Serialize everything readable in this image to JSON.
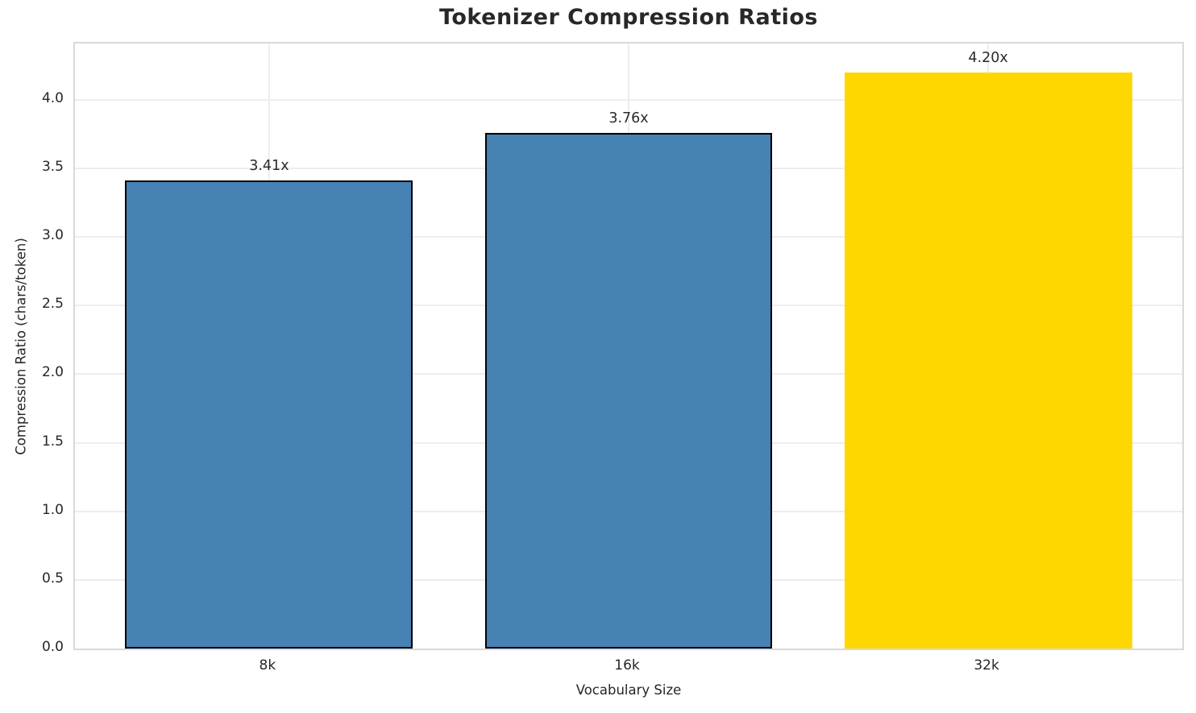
{
  "title": "Tokenizer Compression Ratios",
  "chart_data": {
    "type": "bar",
    "title": "Tokenizer Compression Ratios",
    "xlabel": "Vocabulary Size",
    "ylabel": "Compression Ratio (chars/token)",
    "categories": [
      "8k",
      "16k",
      "32k"
    ],
    "values": [
      3.41,
      3.76,
      4.2
    ],
    "bars": [
      {
        "category": "8k",
        "value": 3.41,
        "label": "3.41x",
        "color": "#4682B4",
        "edge": "#000000"
      },
      {
        "category": "16k",
        "value": 3.76,
        "label": "3.76x",
        "color": "#4682B4",
        "edge": "#000000"
      },
      {
        "category": "32k",
        "value": 4.2,
        "label": "4.20x",
        "color": "#FFD700",
        "edge": null
      }
    ],
    "ylim": [
      0,
      4.41
    ],
    "xlim": [
      -0.54,
      2.54
    ],
    "bar_width": 0.8,
    "yticks": [
      0.0,
      0.5,
      1.0,
      1.5,
      2.0,
      2.5,
      3.0,
      3.5,
      4.0
    ],
    "ytick_labels": [
      "0.0",
      "0.5",
      "1.0",
      "1.5",
      "2.0",
      "2.5",
      "3.0",
      "3.5",
      "4.0"
    ],
    "grid": true,
    "legend": false,
    "colors": {
      "bar_default": "#4682B4",
      "bar_highlight": "#FFD700",
      "bar_edge": "#000000",
      "grid": "#ededed",
      "spine": "#d9d9d9",
      "text": "#262626"
    }
  }
}
